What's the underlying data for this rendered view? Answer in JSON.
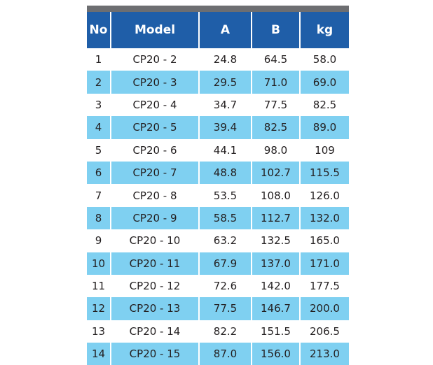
{
  "table": {
    "headers": [
      "No",
      "Model",
      "A",
      "B",
      "kg"
    ],
    "rows": [
      [
        "1",
        "CP20 - 2",
        "24.8",
        "64.5",
        "58.0"
      ],
      [
        "2",
        "CP20 - 3",
        "29.5",
        "71.0",
        "69.0"
      ],
      [
        "3",
        "CP20 - 4",
        "34.7",
        "77.5",
        "82.5"
      ],
      [
        "4",
        "CP20 - 5",
        "39.4",
        "82.5",
        "89.0"
      ],
      [
        "5",
        "CP20 - 6",
        "44.1",
        "98.0",
        "109"
      ],
      [
        "6",
        "CP20 - 7",
        "48.8",
        "102.7",
        "115.5"
      ],
      [
        "7",
        "CP20 - 8",
        "53.5",
        "108.0",
        "126.0"
      ],
      [
        "8",
        "CP20 - 9",
        "58.5",
        "112.7",
        "132.0"
      ],
      [
        "9",
        "CP20 - 10",
        "63.2",
        "132.5",
        "165.0"
      ],
      [
        "10",
        "CP20 - 11",
        "67.9",
        "137.0",
        "171.0"
      ],
      [
        "11",
        "CP20 - 12",
        "72.6",
        "142.0",
        "177.5"
      ],
      [
        "12",
        "CP20 - 13",
        "77.5",
        "146.7",
        "200.0"
      ],
      [
        "13",
        "CP20 - 14",
        "82.2",
        "151.5",
        "206.5"
      ],
      [
        "14",
        "CP20 - 15",
        "87.0",
        "156.0",
        "213.0"
      ]
    ]
  },
  "colors": {
    "header_bg": "#1f5ea8",
    "stripe_bg": "#7fd0f1",
    "top_bar": "#6d6e71"
  }
}
